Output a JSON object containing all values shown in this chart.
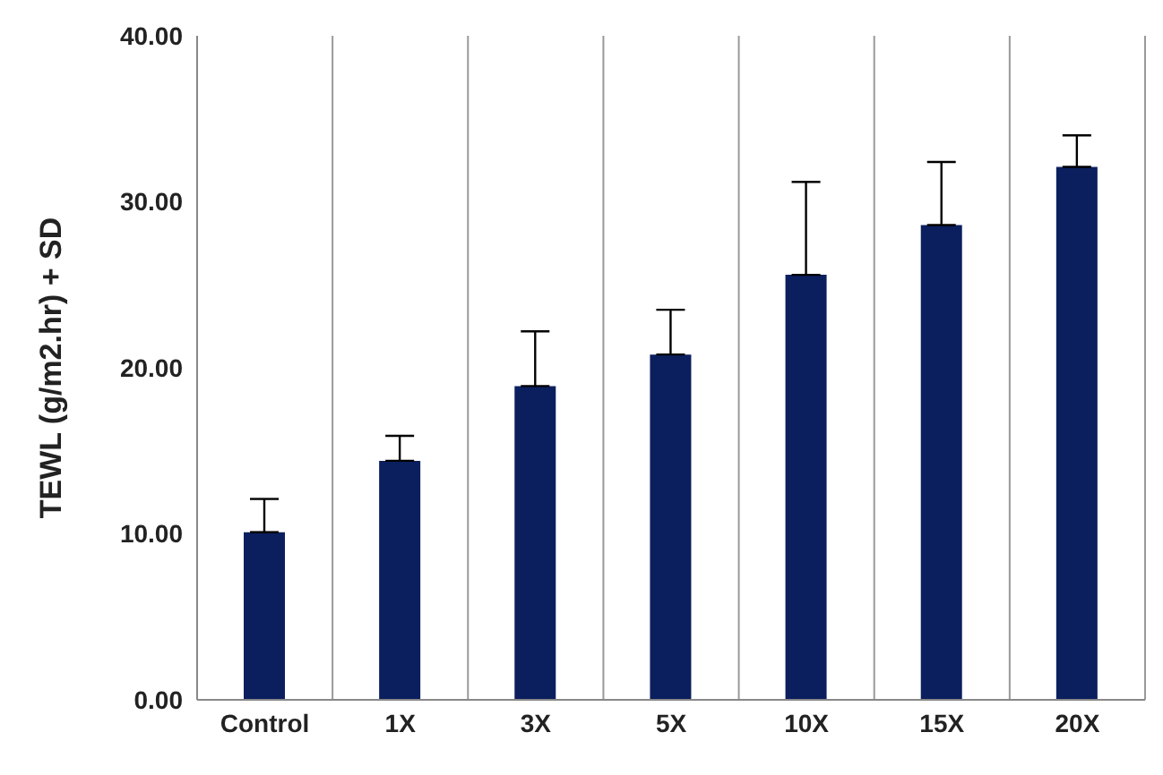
{
  "chart_data": {
    "type": "bar",
    "ylabel": "TEWL (g/m2.hr) + SD",
    "categories": [
      "Control",
      "1X",
      "3X",
      "5X",
      "10X",
      "15X",
      "20X"
    ],
    "values": [
      10.1,
      14.4,
      18.9,
      20.8,
      25.6,
      28.6,
      32.1
    ],
    "errors": [
      [
        10.1,
        12.1
      ],
      [
        14.4,
        15.9
      ],
      [
        18.9,
        22.2
      ],
      [
        20.8,
        23.5
      ],
      [
        25.6,
        31.2
      ],
      [
        28.6,
        32.4
      ],
      [
        32.1,
        34.0
      ]
    ],
    "color": "#0b1f5e",
    "ylim": [
      0,
      40
    ],
    "yticks": [
      {
        "value": 0,
        "label": "0.00"
      },
      {
        "value": 10,
        "label": "10.00"
      },
      {
        "value": 20,
        "label": "20.00"
      },
      {
        "value": 30,
        "label": "30.00"
      },
      {
        "value": 40,
        "label": "40.00"
      }
    ],
    "grid": "x"
  }
}
